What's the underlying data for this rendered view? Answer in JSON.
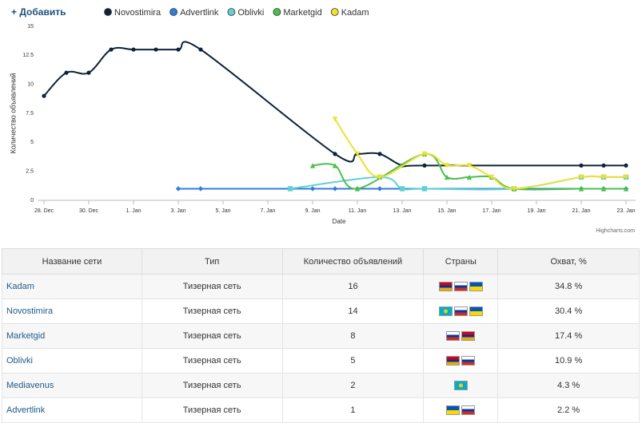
{
  "add_button": "+ Добавить",
  "chart_data": {
    "type": "line",
    "curve": "spline",
    "y_label": "Количество объявлений",
    "x_label": "Date",
    "credit": "Highcharts.com",
    "ylim": [
      0,
      15
    ],
    "yticks": [
      0,
      2.5,
      5,
      7.5,
      10,
      12.5,
      15
    ],
    "grid": true,
    "xticks": [
      "28. Dec",
      "30. Dec",
      "1. Jan",
      "3. Jan",
      "5. Jan",
      "7. Jan",
      "9. Jan",
      "11. Jan",
      "13. Jan",
      "15. Jan",
      "17. Jan",
      "19. Jan",
      "21. Jan",
      "23. Jan"
    ],
    "series": [
      {
        "name": "Novostimira",
        "color": "#0d233a",
        "marker": "circle",
        "x": [
          "28. Dec",
          "29. Dec",
          "30. Dec",
          "31. Dec",
          "1. Jan",
          "2. Jan",
          "3. Jan",
          "4. Jan",
          "10. Jan",
          "11. Jan",
          "12. Jan",
          "13. Jan",
          "14. Jan",
          "21. Jan",
          "22. Jan",
          "23. Jan"
        ],
        "values": [
          9,
          11,
          11,
          13,
          13,
          13,
          13,
          13,
          4,
          4,
          4,
          3,
          3,
          3,
          3,
          3
        ]
      },
      {
        "name": "Advertlink",
        "color": "#2f7ed8",
        "marker": "diamond",
        "x": [
          "3. Jan",
          "4. Jan",
          "9. Jan",
          "10. Jan",
          "11. Jan",
          "12. Jan",
          "13. Jan",
          "14. Jan",
          "21. Jan",
          "22. Jan",
          "23. Jan"
        ],
        "values": [
          1,
          1,
          1,
          1,
          1,
          1,
          1,
          1,
          1,
          1,
          1
        ]
      },
      {
        "name": "Oblivki",
        "color": "#5fd0d4",
        "marker": "square",
        "x": [
          "8. Jan",
          "12. Jan",
          "13. Jan",
          "14. Jan",
          "18. Jan",
          "21. Jan",
          "22. Jan",
          "23. Jan"
        ],
        "values": [
          1,
          2,
          1,
          1,
          1,
          2,
          2,
          2
        ]
      },
      {
        "name": "Marketgid",
        "color": "#4cbf4c",
        "marker": "triangle",
        "x": [
          "9. Jan",
          "10. Jan",
          "11. Jan",
          "14. Jan",
          "15. Jan",
          "16. Jan",
          "17. Jan",
          "18. Jan",
          "21. Jan",
          "22. Jan",
          "23. Jan"
        ],
        "values": [
          3,
          3,
          1,
          4,
          2,
          2,
          2,
          1,
          1,
          1,
          1
        ]
      },
      {
        "name": "Kadam",
        "color": "#f0e030",
        "marker": "triangle-down",
        "x": [
          "10. Jan",
          "11. Jan",
          "12. Jan",
          "14. Jan",
          "15. Jan",
          "16. Jan",
          "17. Jan",
          "18. Jan",
          "21. Jan",
          "22. Jan",
          "23. Jan"
        ],
        "values": [
          7,
          4,
          2,
          4,
          3,
          3,
          2,
          1,
          2,
          2,
          2
        ]
      }
    ]
  },
  "table": {
    "headers": [
      "Название сети",
      "Тип",
      "Количество объявлений",
      "Страны",
      "Охват, %"
    ],
    "rows": [
      [
        "Kadam",
        "Тизерная сеть",
        "16",
        "34.8 %"
      ],
      [
        "Novostimira",
        "Тизерная сеть",
        "14",
        "30.4 %"
      ],
      [
        "Marketgid",
        "Тизерная сеть",
        "8",
        "17.4 %"
      ],
      [
        "Oblivki",
        "Тизерная сеть",
        "5",
        "10.9 %"
      ],
      [
        "Mediavenus",
        "Тизерная сеть",
        "2",
        "4.3 %"
      ],
      [
        "Advertlink",
        "Тизерная сеть",
        "1",
        "2.2 %"
      ]
    ]
  }
}
